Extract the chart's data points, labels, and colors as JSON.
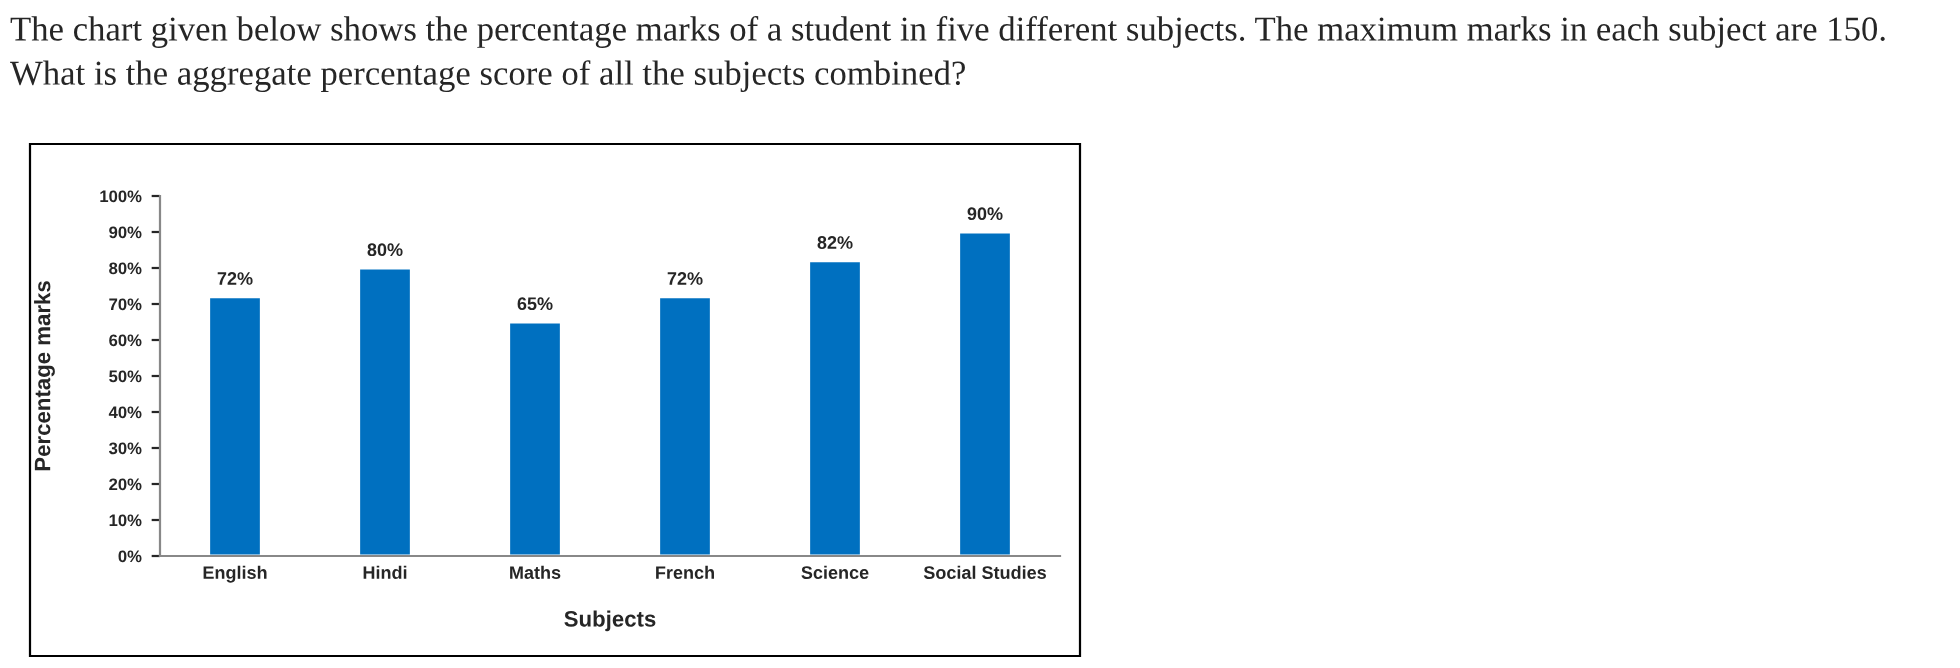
{
  "chart_data": {
    "type": "bar",
    "title": "The chart given below shows the percentage marks of a student in five different subjects. The maximum marks in each subject are 150. What is the aggregate percentage score of all the subjects combined?",
    "xlabel": "Subjects",
    "ylabel": "Percentage marks",
    "categories": [
      "English",
      "Hindi",
      "Maths",
      "French",
      "Science",
      "Social Studies"
    ],
    "values": [
      72,
      80,
      65,
      72,
      82,
      90
    ],
    "value_labels": [
      "72%",
      "80%",
      "65%",
      "72%",
      "82%",
      "90%"
    ],
    "color": "#0070c0",
    "ylim": [
      0,
      100
    ],
    "yticks": [
      {
        "value": 0,
        "label": "0%"
      },
      {
        "value": 10,
        "label": "10%"
      },
      {
        "value": 20,
        "label": "20%"
      },
      {
        "value": 30,
        "label": "30%"
      },
      {
        "value": 40,
        "label": "40%"
      },
      {
        "value": 50,
        "label": "50%"
      },
      {
        "value": 60,
        "label": "60%"
      },
      {
        "value": 70,
        "label": "70%"
      },
      {
        "value": 80,
        "label": "80%"
      },
      {
        "value": 90,
        "label": "90%"
      },
      {
        "value": 100,
        "label": "100%"
      }
    ],
    "grid": false,
    "legend": false
  }
}
